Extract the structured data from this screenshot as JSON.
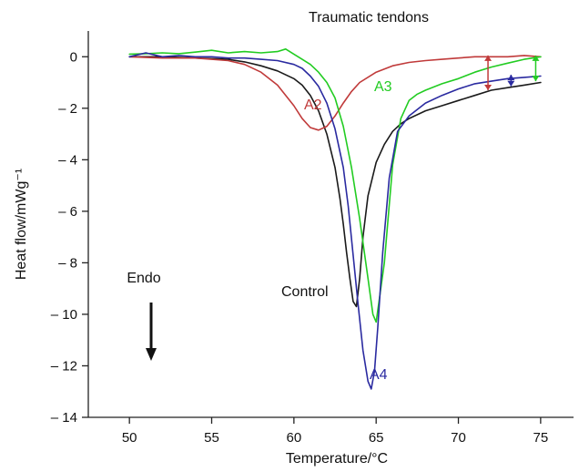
{
  "chart_data": {
    "type": "line",
    "title": "Traumatic tendons",
    "xlabel": "Temperature/°C",
    "ylabel": "Heat flow/mWg⁻¹",
    "xlim": [
      47.5,
      77
    ],
    "ylim": [
      -14,
      1
    ],
    "xticks": [
      50,
      55,
      60,
      65,
      70,
      75
    ],
    "yticks": [
      0,
      -2,
      -4,
      -6,
      -8,
      -10,
      -12,
      -14
    ],
    "xtick_labels": [
      "50",
      "55",
      "60",
      "65",
      "70",
      "75"
    ],
    "ytick_labels": [
      "0",
      "– 2",
      "– 4",
      "– 6",
      "– 8",
      "– 10",
      "– 12",
      "– 14"
    ],
    "grid": false,
    "annotation": {
      "text": "Endo"
    },
    "series": [
      {
        "name": "Control",
        "color": "#1a1a1a",
        "x": [
          50,
          52,
          54,
          56,
          57,
          58,
          59,
          60,
          60.5,
          61,
          61.5,
          62,
          62.5,
          62.8,
          63,
          63.2,
          63.4,
          63.6,
          63.8,
          64,
          64.2,
          64.5,
          65,
          65.5,
          66,
          66.5,
          67,
          68,
          69,
          70,
          71,
          72,
          73,
          74,
          75
        ],
        "y": [
          0,
          0,
          -0.05,
          -0.1,
          -0.2,
          -0.35,
          -0.55,
          -0.85,
          -1.1,
          -1.5,
          -2.1,
          -3.0,
          -4.3,
          -5.5,
          -6.5,
          -7.6,
          -8.6,
          -9.5,
          -9.7,
          -8.6,
          -7.0,
          -5.4,
          -4.1,
          -3.4,
          -2.9,
          -2.6,
          -2.4,
          -2.1,
          -1.9,
          -1.7,
          -1.5,
          -1.3,
          -1.2,
          -1.1,
          -1.0
        ]
      },
      {
        "name": "A2",
        "color": "#c03a3a",
        "x": [
          50,
          52,
          54,
          56,
          57,
          58,
          59,
          60,
          60.5,
          61,
          61.5,
          62,
          62.5,
          63,
          63.5,
          64,
          65,
          66,
          67,
          68,
          69,
          70,
          71,
          72,
          73,
          74,
          75
        ],
        "y": [
          0,
          -0.05,
          -0.05,
          -0.15,
          -0.3,
          -0.6,
          -1.1,
          -1.9,
          -2.4,
          -2.75,
          -2.85,
          -2.7,
          -2.3,
          -1.8,
          -1.35,
          -1.0,
          -0.6,
          -0.35,
          -0.22,
          -0.15,
          -0.1,
          -0.05,
          0,
          0,
          0,
          0.05,
          0
        ]
      },
      {
        "name": "A3",
        "color": "#22cc22",
        "x": [
          50,
          51,
          52,
          53,
          54,
          55,
          56,
          57,
          58,
          59,
          59.5,
          60,
          60.5,
          61,
          61.5,
          62,
          62.5,
          63,
          63.5,
          64,
          64.5,
          64.8,
          65,
          65.5,
          66,
          66.5,
          67,
          67.5,
          68,
          69,
          70,
          71,
          72,
          73,
          74,
          75
        ],
        "y": [
          0.1,
          0.12,
          0.15,
          0.12,
          0.18,
          0.25,
          0.15,
          0.2,
          0.15,
          0.2,
          0.3,
          0.1,
          -0.1,
          -0.3,
          -0.6,
          -1.0,
          -1.6,
          -2.7,
          -4.3,
          -6.3,
          -8.6,
          -10.0,
          -10.3,
          -8.0,
          -4.2,
          -2.4,
          -1.7,
          -1.45,
          -1.3,
          -1.05,
          -0.85,
          -0.6,
          -0.4,
          -0.25,
          -0.1,
          0
        ]
      },
      {
        "name": "A4",
        "color": "#2a2aa0",
        "x": [
          50,
          51,
          52,
          53,
          54,
          55,
          56,
          57,
          58,
          59,
          60,
          60.5,
          61,
          61.5,
          62,
          62.5,
          63,
          63.3,
          63.6,
          63.9,
          64.2,
          64.5,
          64.7,
          64.9,
          65.1,
          65.4,
          65.8,
          66.3,
          67,
          68,
          69,
          70,
          71,
          72,
          73,
          74,
          75
        ],
        "y": [
          0,
          0.15,
          0,
          0.05,
          0,
          0,
          -0.05,
          -0.05,
          -0.1,
          -0.15,
          -0.3,
          -0.45,
          -0.75,
          -1.15,
          -1.8,
          -2.8,
          -4.3,
          -5.8,
          -7.7,
          -9.6,
          -11.4,
          -12.6,
          -12.9,
          -12.2,
          -10.5,
          -7.6,
          -4.7,
          -2.9,
          -2.3,
          -1.8,
          -1.5,
          -1.25,
          -1.05,
          -0.95,
          -0.85,
          -0.8,
          -0.75
        ]
      }
    ]
  }
}
